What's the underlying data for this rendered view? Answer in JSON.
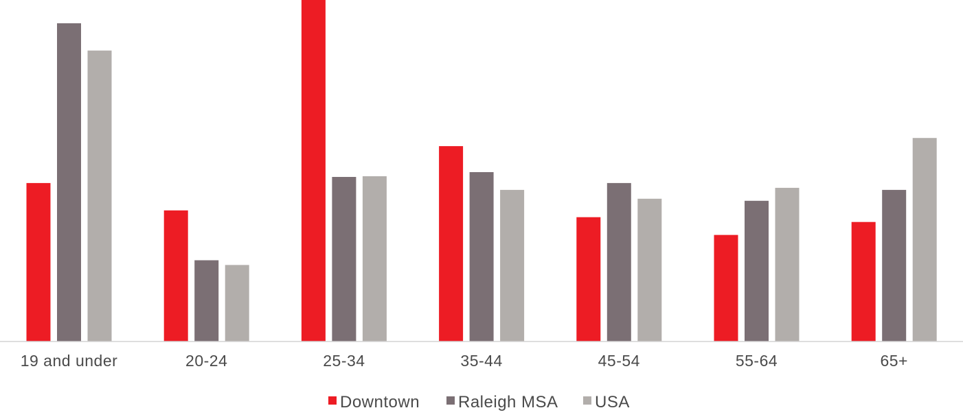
{
  "chart_data": {
    "type": "bar",
    "title": "",
    "xlabel": "",
    "ylabel": "",
    "ylim": [
      0,
      100
    ],
    "grid": false,
    "legend_position": "bottom-center",
    "categories": [
      "19 and under",
      "20-24",
      "25-34",
      "35-44",
      "45-54",
      "55-64",
      "65+"
    ],
    "series": [
      {
        "name": "Downtown",
        "color": "#ed1c24",
        "values": [
          46.4,
          38.4,
          100,
          57.2,
          36.4,
          31.2,
          35.0
        ]
      },
      {
        "name": "Raleigh MSA",
        "color": "#7b6f74",
        "values": [
          93.2,
          23.8,
          48.2,
          49.6,
          46.4,
          41.2,
          44.4
        ]
      },
      {
        "name": "USA",
        "color": "#b2aeab",
        "values": [
          85.2,
          22.4,
          48.4,
          44.4,
          41.8,
          45.0,
          59.6
        ]
      }
    ]
  }
}
